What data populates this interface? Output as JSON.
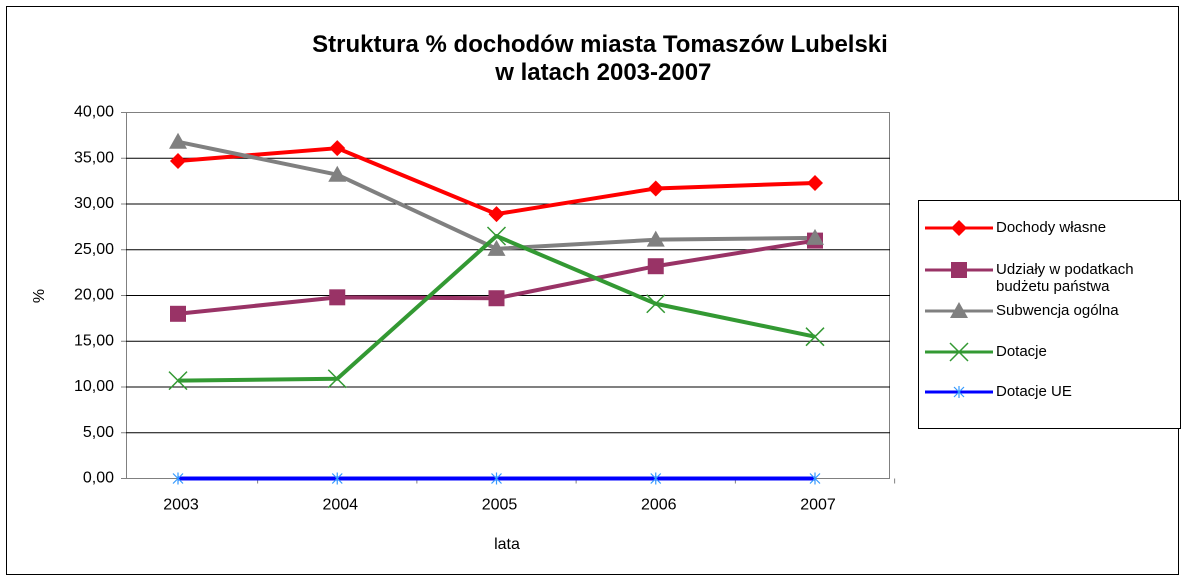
{
  "chart_data": {
    "type": "line",
    "title": "Struktura % dochodów miasta Tomaszów Lubelski w latach 2003-2007",
    "xlabel": "lata",
    "ylabel": "%",
    "categories": [
      "2003",
      "2004",
      "2005",
      "2006",
      "2007"
    ],
    "series": [
      {
        "name": "Dochody własne",
        "color": "#ff0000",
        "marker": "diamond",
        "values": [
          34.7,
          36.1,
          28.9,
          31.7,
          32.3
        ]
      },
      {
        "name": "Udziały w podatkach budżetu państwa",
        "color": "#993366",
        "marker": "square",
        "values": [
          18.0,
          19.8,
          19.7,
          23.2,
          26.0
        ]
      },
      {
        "name": "Subwencja ogólna",
        "color": "#808080",
        "marker": "triangle",
        "values": [
          36.8,
          33.2,
          25.1,
          26.1,
          26.3
        ]
      },
      {
        "name": "Dotacje",
        "color": "#339933",
        "marker": "x",
        "values": [
          10.7,
          10.9,
          26.5,
          19.1,
          15.5
        ]
      },
      {
        "name": "Dotacje UE",
        "color": "#0000ff",
        "marker": "star",
        "values": [
          0,
          0,
          0,
          0,
          0
        ]
      }
    ],
    "ylim": [
      0,
      40
    ],
    "yticks": [
      {
        "value": 0,
        "label": "0,00"
      },
      {
        "value": 5,
        "label": "5,00"
      },
      {
        "value": 10,
        "label": "10,00"
      },
      {
        "value": 15,
        "label": "15,00"
      },
      {
        "value": 20,
        "label": "20,00"
      },
      {
        "value": 25,
        "label": "25,00"
      },
      {
        "value": 30,
        "label": "30,00"
      },
      {
        "value": 35,
        "label": "35,00"
      },
      {
        "value": 40,
        "label": "40,00"
      }
    ],
    "grid": true,
    "legend": "right"
  }
}
